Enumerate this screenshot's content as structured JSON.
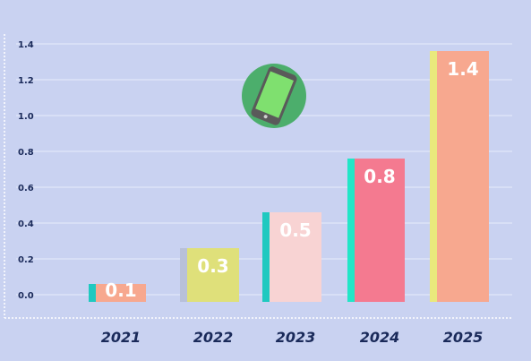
{
  "chart_data": {
    "type": "bar",
    "categories": [
      "2021",
      "2022",
      "2023",
      "2024",
      "2025"
    ],
    "values": [
      0.1,
      0.3,
      0.5,
      0.8,
      1.4
    ],
    "data_labels": [
      "0.1",
      "0.3",
      "0.5",
      "0.8",
      "1.4"
    ],
    "y_ticks": [
      "0.0",
      "0.2",
      "0.4",
      "0.6",
      "0.8",
      "1.0",
      "1.2",
      "1.4"
    ],
    "ylim": [
      0,
      1.4
    ],
    "grid": true,
    "legend": "none",
    "bar_colors": [
      "#f7a88f",
      "#dfe07a",
      "#f8d3d3",
      "#f47a90",
      "#f7a88f"
    ],
    "accent_colors": [
      "#1fc9c0",
      "#b8c0d9",
      "#1fc9c0",
      "#22e6c7",
      "#e9e97c"
    ],
    "icon": "smartphone-icon"
  }
}
